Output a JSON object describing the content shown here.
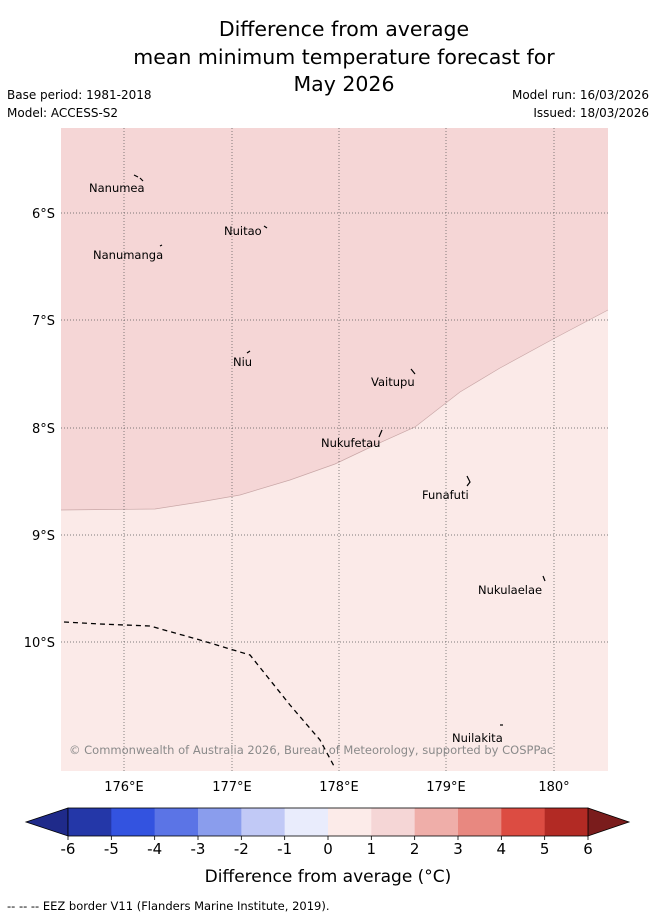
{
  "header": {
    "title_lines": [
      "Difference from average",
      "mean minimum temperature forecast for",
      "May 2026"
    ],
    "base_period": "Base period: 1981-2018",
    "model": "Model: ACCESS-S2",
    "model_run": "Model run: 16/03/2026",
    "issued": "Issued: 18/03/2026"
  },
  "map": {
    "lat_labels": [
      "6°S",
      "7°S",
      "8°S",
      "9°S",
      "10°S"
    ],
    "lon_labels": [
      "176°E",
      "177°E",
      "178°E",
      "179°E",
      "180°"
    ],
    "places": [
      "Nanumea",
      "Nuitao",
      "Nanumanga",
      "Niu",
      "Vaitupu",
      "Nukufetau",
      "Funafuti",
      "Nukulaelae",
      "Nuilakita"
    ],
    "copyright": "© Commonwealth of Australia 2026, Bureau of Meteorology, supported by COSPPac",
    "anomaly_classes": [
      {
        "range": "1 to 2",
        "color": "#f5d6d6"
      },
      {
        "range": "0 to 1",
        "color": "#fbeae8"
      }
    ]
  },
  "colorbar": {
    "ticks": [
      "-6",
      "-5",
      "-4",
      "-3",
      "-2",
      "-1",
      "0",
      "1",
      "2",
      "3",
      "4",
      "5",
      "6"
    ],
    "under_color": "#1f2a8a",
    "over_color": "#7a1c1c",
    "colors": [
      "#2437a8",
      "#3353e0",
      "#5b74e6",
      "#8a9ded",
      "#c1c9f6",
      "#e9ecfc",
      "#fcebe9",
      "#f5d6d6",
      "#efaea9",
      "#e88880",
      "#dc4c42",
      "#b22a24"
    ],
    "label": "Difference from average (°C)"
  },
  "legend": {
    "eez": "--  --  -- EEZ border V11 (Flanders Marine Institute, 2019)."
  }
}
